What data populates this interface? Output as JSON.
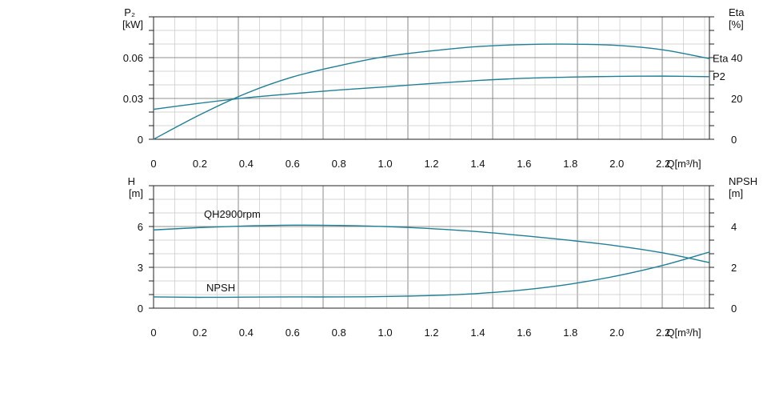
{
  "chart_data": [
    {
      "type": "line",
      "panel": "power-efficiency",
      "x_ticks": [
        "0",
        "0.2",
        "0.4",
        "0.6",
        "0.8",
        "1.0",
        "1.2",
        "1.4",
        "1.6",
        "1.8",
        "2.0",
        "2.2",
        "Q[m³/h]"
      ],
      "xlim": [
        0,
        2.4
      ],
      "left_axis": {
        "label_line1": "P₂",
        "label_line2": "[kW]",
        "ylim": [
          0,
          0.09
        ],
        "ticks": [
          {
            "value": 0,
            "label": "0"
          },
          {
            "value": 0.03,
            "label": "0.03"
          },
          {
            "value": 0.06,
            "label": "0.06"
          }
        ]
      },
      "right_axis": {
        "label_line1": "Eta",
        "label_line2": "[%]",
        "ylim": [
          0,
          60
        ],
        "ticks": [
          {
            "value": 0,
            "label": "0"
          },
          {
            "value": 20,
            "label": "20"
          },
          {
            "value": 40,
            "label": "40"
          }
        ]
      },
      "series": [
        {
          "name": "Eta",
          "axis": "right",
          "color": "#1f7f95",
          "x": [
            0,
            0.2,
            0.4,
            0.6,
            0.8,
            1.0,
            1.2,
            1.4,
            1.6,
            1.8,
            2.0,
            2.2,
            2.4
          ],
          "y": [
            0,
            12,
            22.5,
            30.5,
            36,
            40.5,
            43.3,
            45.4,
            46.4,
            46.6,
            46,
            43.8,
            39.5
          ]
        },
        {
          "name": "P2",
          "axis": "left",
          "color": "#1f7f95",
          "x": [
            0,
            0.2,
            0.4,
            0.6,
            0.8,
            1.0,
            1.2,
            1.4,
            1.6,
            1.8,
            2.0,
            2.2,
            2.4
          ],
          "y": [
            0.022,
            0.0265,
            0.0305,
            0.0335,
            0.0362,
            0.0385,
            0.041,
            0.0432,
            0.0448,
            0.0457,
            0.0462,
            0.0464,
            0.046
          ]
        }
      ]
    },
    {
      "type": "line",
      "panel": "head-npsh",
      "x_ticks": [
        "0",
        "0.2",
        "0.4",
        "0.6",
        "0.8",
        "1.0",
        "1.2",
        "1.4",
        "1.6",
        "1.8",
        "2.0",
        "2.2",
        "Q[m³/h]"
      ],
      "xlim": [
        0,
        2.4
      ],
      "left_axis": {
        "label_line1": "H",
        "label_line2": "[m]",
        "ylim": [
          0,
          9
        ],
        "ticks": [
          {
            "value": 0,
            "label": "0"
          },
          {
            "value": 3,
            "label": "3"
          },
          {
            "value": 6,
            "label": "6"
          }
        ]
      },
      "right_axis": {
        "label_line1": "NPSH",
        "label_line2": "[m]",
        "ylim": [
          0,
          6
        ],
        "ticks": [
          {
            "value": 0,
            "label": "0"
          },
          {
            "value": 2,
            "label": "2"
          },
          {
            "value": 4,
            "label": "4"
          }
        ]
      },
      "series": [
        {
          "name": "QH2900rpm",
          "axis": "left",
          "color": "#1f7f95",
          "x": [
            0,
            0.2,
            0.4,
            0.6,
            0.8,
            1.0,
            1.2,
            1.4,
            1.6,
            1.8,
            2.0,
            2.2,
            2.4
          ],
          "y": [
            5.75,
            5.92,
            6.04,
            6.1,
            6.08,
            6.0,
            5.84,
            5.62,
            5.32,
            4.98,
            4.58,
            4.06,
            3.35
          ]
        },
        {
          "name": "NPSH",
          "axis": "right",
          "color": "#1f7f95",
          "x": [
            0,
            0.2,
            0.4,
            0.6,
            0.8,
            1.0,
            1.2,
            1.4,
            1.6,
            1.8,
            2.0,
            2.2,
            2.4
          ],
          "y": [
            0.55,
            0.53,
            0.54,
            0.55,
            0.55,
            0.57,
            0.62,
            0.72,
            0.9,
            1.18,
            1.58,
            2.1,
            2.75
          ]
        }
      ]
    }
  ]
}
